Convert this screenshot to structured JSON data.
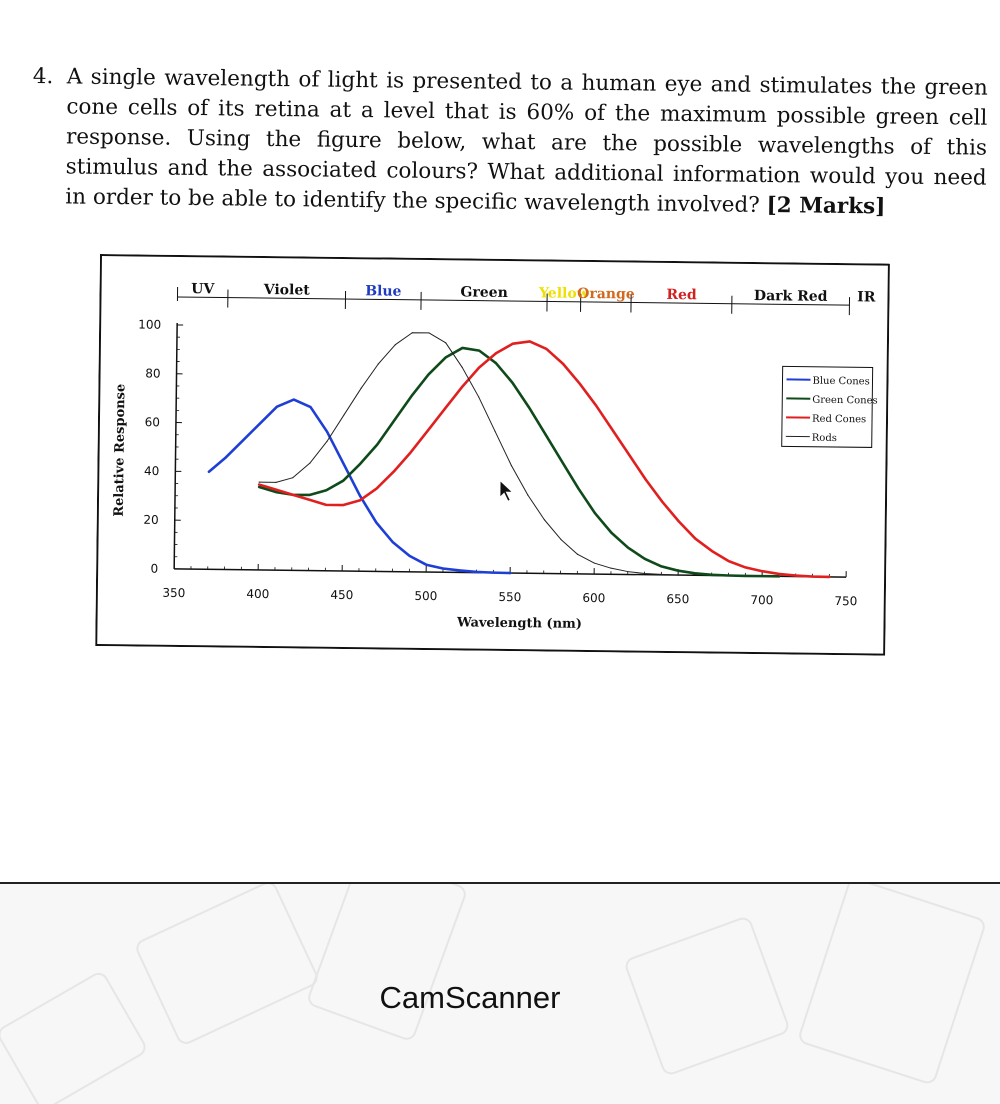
{
  "question": {
    "number": "4.",
    "text": "A single wavelength of light is presented to a human eye and stimulates the green cone cells of its retina at a level that is 60% of the maximum possible green cell response. Using the figure below, what are the possible wavelengths of this stimulus and the associated colours? What additional information would you need in order to be able to identify the specific wavelength involved?",
    "marks": "[2 Marks]"
  },
  "chart_data": {
    "type": "line",
    "title": "",
    "xlabel": "Wavelength (nm)",
    "ylabel": "Relative Response",
    "xlim": [
      350,
      750
    ],
    "ylim": [
      0,
      100
    ],
    "x_ticks": [
      "350",
      "400",
      "450",
      "500",
      "550",
      "600",
      "650",
      "700",
      "750"
    ],
    "y_ticks": [
      "0",
      "20",
      "40",
      "60",
      "80",
      "100"
    ],
    "grid": false,
    "legend_position": "right",
    "color_bands": [
      {
        "label": "UV",
        "color": "#111111",
        "range": [
          350,
          380
        ]
      },
      {
        "label": "Violet",
        "color": "#111111",
        "range": [
          380,
          450
        ]
      },
      {
        "label": "Blue",
        "color": "#1f3bbf",
        "range": [
          450,
          495
        ]
      },
      {
        "label": "Green",
        "color": "#111111",
        "range": [
          495,
          570
        ]
      },
      {
        "label": "Yellow",
        "color": "#f0e000",
        "range": [
          570,
          590
        ]
      },
      {
        "label": "Orange",
        "color": "#d2691e",
        "range": [
          590,
          620
        ]
      },
      {
        "label": "Red",
        "color": "#d22020",
        "range": [
          620,
          680
        ]
      },
      {
        "label": "Dark Red",
        "color": "#111111",
        "range": [
          680,
          750
        ]
      },
      {
        "label": "IR",
        "color": "#111111",
        "range": [
          750,
          770
        ]
      }
    ],
    "series": [
      {
        "name": "Blue Cones",
        "color": "#1e3fd6",
        "x": [
          370,
          380,
          390,
          400,
          410,
          420,
          430,
          440,
          450,
          460,
          470,
          480,
          490,
          500,
          510,
          520,
          530,
          540,
          550
        ],
        "y": [
          40,
          46,
          53,
          60,
          67,
          70,
          67,
          57,
          44,
          31,
          20,
          12,
          6.5,
          3,
          1.5,
          0.8,
          0.3,
          0.1,
          0
        ]
      },
      {
        "name": "Green Cones",
        "color": "#0f4a1a",
        "x": [
          400,
          410,
          420,
          430,
          440,
          450,
          460,
          470,
          480,
          490,
          500,
          510,
          520,
          530,
          540,
          550,
          560,
          570,
          580,
          590,
          600,
          610,
          620,
          630,
          640,
          650,
          660,
          670,
          680,
          690,
          700,
          710
        ],
        "y": [
          34,
          32,
          31,
          31,
          33,
          37,
          44,
          52,
          62,
          72,
          81,
          88,
          92,
          91,
          86,
          78,
          68,
          57,
          46,
          35,
          25,
          17,
          11,
          6.5,
          3.5,
          1.8,
          0.8,
          0.3,
          0.1,
          0,
          0,
          0
        ]
      },
      {
        "name": "Red Cones",
        "color": "#e02020",
        "x": [
          400,
          410,
          420,
          430,
          440,
          450,
          460,
          470,
          480,
          490,
          500,
          510,
          520,
          530,
          540,
          550,
          560,
          570,
          580,
          590,
          600,
          610,
          620,
          630,
          640,
          650,
          660,
          670,
          680,
          690,
          700,
          710,
          720,
          730,
          740
        ],
        "y": [
          35,
          33,
          31,
          29,
          27,
          27,
          29,
          34,
          41,
          49,
          58,
          67,
          76,
          84,
          90,
          94,
          95,
          92,
          86,
          78,
          69,
          59,
          49,
          39,
          30,
          22,
          15,
          10,
          6,
          3.5,
          2,
          1,
          0.4,
          0.1,
          0
        ]
      },
      {
        "name": "Rods",
        "color": "#222222",
        "x": [
          400,
          410,
          420,
          430,
          440,
          450,
          460,
          470,
          480,
          490,
          500,
          510,
          520,
          530,
          540,
          550,
          560,
          570,
          580,
          590,
          600,
          610,
          620,
          630,
          640,
          650
        ],
        "y": [
          36,
          36,
          38,
          44,
          53,
          64,
          75,
          85,
          93,
          98,
          98,
          94,
          84,
          72,
          58,
          44,
          32,
          22,
          14,
          8,
          4.5,
          2.5,
          1.2,
          0.5,
          0.2,
          0
        ]
      }
    ]
  },
  "footer": {
    "brand": "CamScanner"
  }
}
